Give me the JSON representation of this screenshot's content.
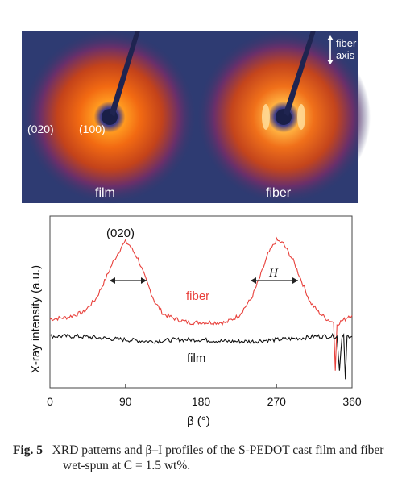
{
  "figure": {
    "panel_top": {
      "film_label": "film",
      "fiber_label": "fiber",
      "peak_020": "(020)",
      "peak_100": "(100)",
      "fiber_axis_line1": "fiber",
      "fiber_axis_line2": "axis"
    },
    "caption": {
      "number": "Fig. 5",
      "text": "XRD patterns and β–I profiles of the S-PEDOT cast film and fiber wet-spun at C = 1.5 wt%."
    }
  },
  "chart_data": {
    "type": "line",
    "xlabel": "β (°)",
    "ylabel": "X-ray intensity (a.u.)",
    "xlim": [
      0,
      360
    ],
    "x_ticks": [
      0,
      90,
      180,
      270,
      360
    ],
    "tick_labels": [
      "0",
      "90",
      "180",
      "270",
      "360"
    ],
    "ylim": [
      0,
      1
    ],
    "grid": false,
    "annotations": {
      "peak": "(020)",
      "width": "H"
    },
    "series": [
      {
        "name": "fiber",
        "color": "#e8413c",
        "x": [
          0,
          20,
          40,
          55,
          65,
          75,
          85,
          90,
          95,
          105,
          115,
          125,
          135,
          150,
          165,
          180,
          195,
          210,
          225,
          240,
          250,
          260,
          270,
          278,
          290,
          300,
          310,
          320,
          330,
          338,
          340,
          342,
          348,
          352,
          356,
          360
        ],
        "y": [
          0.4,
          0.41,
          0.44,
          0.52,
          0.62,
          0.73,
          0.82,
          0.85,
          0.83,
          0.75,
          0.62,
          0.5,
          0.43,
          0.4,
          0.38,
          0.38,
          0.38,
          0.38,
          0.42,
          0.52,
          0.64,
          0.78,
          0.86,
          0.84,
          0.74,
          0.62,
          0.5,
          0.44,
          0.4,
          0.38,
          0.1,
          0.37,
          0.39,
          0.4,
          0.42,
          0.42
        ]
      },
      {
        "name": "film",
        "color": "#111111",
        "x": [
          0,
          30,
          60,
          90,
          120,
          150,
          180,
          210,
          240,
          270,
          300,
          320,
          330,
          335,
          340,
          342,
          345,
          348,
          350,
          352,
          354,
          358,
          360
        ],
        "y": [
          0.3,
          0.3,
          0.29,
          0.28,
          0.27,
          0.28,
          0.28,
          0.27,
          0.27,
          0.28,
          0.29,
          0.3,
          0.3,
          0.3,
          0.3,
          0.3,
          0.1,
          0.3,
          0.31,
          0.05,
          0.3,
          0.3,
          0.3
        ]
      }
    ]
  }
}
